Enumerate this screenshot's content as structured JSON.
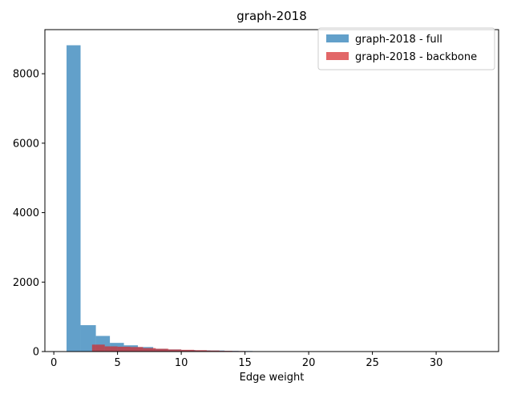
{
  "chart_data": {
    "type": "bar",
    "title": "graph-2018",
    "xlabel": "Edge weight",
    "ylabel": "",
    "xlim": [
      -0.7,
      34.9
    ],
    "ylim": [
      0,
      9270
    ],
    "xticks": [
      0,
      5,
      10,
      15,
      20,
      25,
      30
    ],
    "yticks": [
      0,
      2000,
      4000,
      6000,
      8000
    ],
    "grid": false,
    "legend_position": "top-right",
    "series": [
      {
        "name": "graph-2018 - full",
        "color": "#1f77b4",
        "opacity": 0.7,
        "bins": [
          {
            "x0": 1.0,
            "x1": 2.1,
            "value": 8820
          },
          {
            "x0": 2.1,
            "x1": 3.3,
            "value": 760
          },
          {
            "x0": 3.3,
            "x1": 4.4,
            "value": 450
          },
          {
            "x0": 4.4,
            "x1": 5.5,
            "value": 250
          },
          {
            "x0": 5.5,
            "x1": 6.6,
            "value": 180
          },
          {
            "x0": 6.6,
            "x1": 7.8,
            "value": 130
          },
          {
            "x0": 7.8,
            "x1": 8.9,
            "value": 80
          },
          {
            "x0": 8.9,
            "x1": 10.0,
            "value": 60
          },
          {
            "x0": 10.0,
            "x1": 11.1,
            "value": 45
          },
          {
            "x0": 11.1,
            "x1": 12.3,
            "value": 35
          },
          {
            "x0": 12.3,
            "x1": 13.4,
            "value": 30
          },
          {
            "x0": 13.4,
            "x1": 14.5,
            "value": 20
          },
          {
            "x0": 14.5,
            "x1": 15.6,
            "value": 15
          },
          {
            "x0": 15.6,
            "x1": 16.8,
            "value": 10
          },
          {
            "x0": 16.8,
            "x1": 17.9,
            "value": 8
          },
          {
            "x0": 17.9,
            "x1": 19.0,
            "value": 6
          },
          {
            "x0": 19.0,
            "x1": 20.1,
            "value": 5
          },
          {
            "x0": 20.1,
            "x1": 21.3,
            "value": 4
          },
          {
            "x0": 21.3,
            "x1": 22.4,
            "value": 4
          },
          {
            "x0": 22.4,
            "x1": 23.5,
            "value": 3
          },
          {
            "x0": 23.5,
            "x1": 24.6,
            "value": 3
          },
          {
            "x0": 24.6,
            "x1": 25.8,
            "value": 2
          },
          {
            "x0": 25.8,
            "x1": 26.9,
            "value": 2
          },
          {
            "x0": 26.9,
            "x1": 28.0,
            "value": 2
          },
          {
            "x0": 28.0,
            "x1": 29.1,
            "value": 1
          },
          {
            "x0": 29.1,
            "x1": 30.3,
            "value": 1
          },
          {
            "x0": 30.3,
            "x1": 31.4,
            "value": 1
          },
          {
            "x0": 31.4,
            "x1": 32.5,
            "value": 1
          },
          {
            "x0": 32.5,
            "x1": 33.6,
            "value": 1
          }
        ]
      },
      {
        "name": "graph-2018 - backbone",
        "color": "#d62728",
        "opacity": 0.7,
        "bins": [
          {
            "x0": 3.0,
            "x1": 4.0,
            "value": 200
          },
          {
            "x0": 4.0,
            "x1": 5.0,
            "value": 150
          },
          {
            "x0": 5.0,
            "x1": 6.0,
            "value": 140
          },
          {
            "x0": 6.0,
            "x1": 7.0,
            "value": 130
          },
          {
            "x0": 7.0,
            "x1": 8.0,
            "value": 100
          },
          {
            "x0": 8.0,
            "x1": 9.0,
            "value": 80
          },
          {
            "x0": 9.0,
            "x1": 10.0,
            "value": 60
          },
          {
            "x0": 10.0,
            "x1": 11.0,
            "value": 50
          },
          {
            "x0": 11.0,
            "x1": 12.0,
            "value": 40
          },
          {
            "x0": 12.0,
            "x1": 13.0,
            "value": 30
          },
          {
            "x0": 13.0,
            "x1": 14.0,
            "value": 20
          },
          {
            "x0": 14.0,
            "x1": 15.0,
            "value": 15
          }
        ]
      }
    ]
  }
}
